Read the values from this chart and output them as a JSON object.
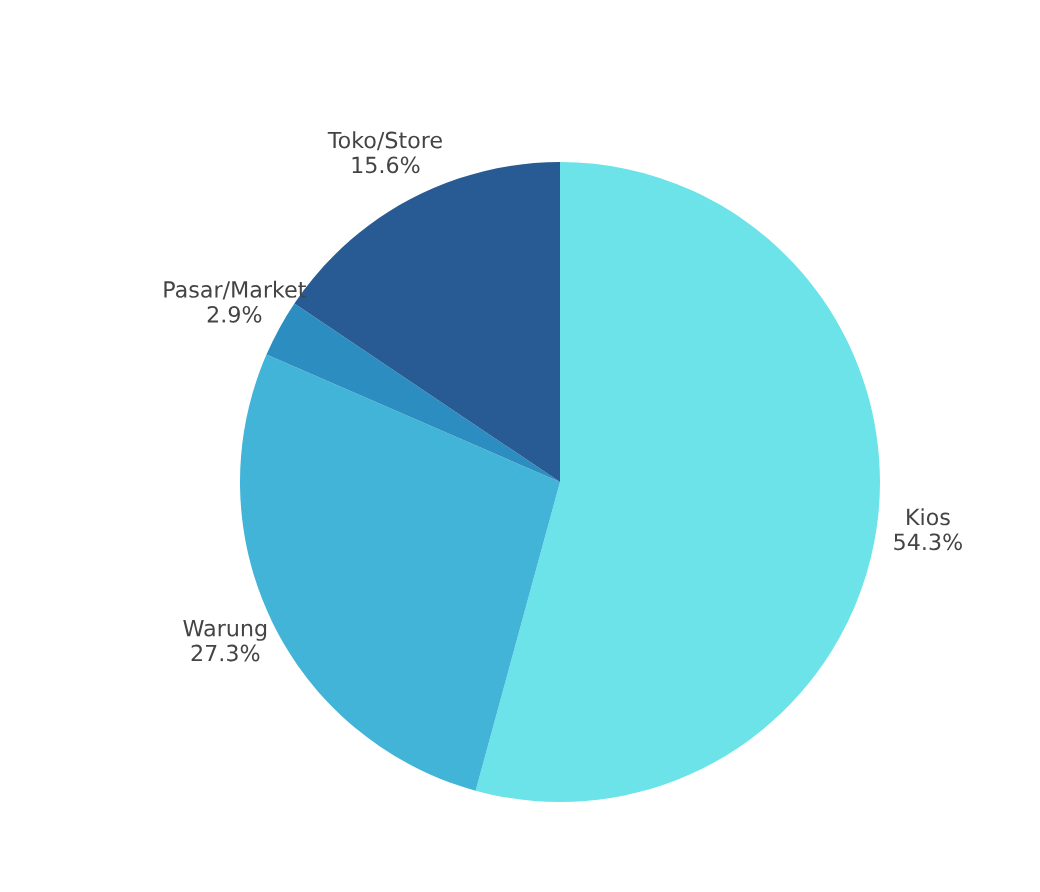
{
  "chart_data": {
    "type": "pie",
    "categories": [
      "Kios",
      "Warung",
      "Pasar/Market",
      "Toko/Store"
    ],
    "values": [
      54.3,
      27.3,
      2.9,
      15.6
    ],
    "colors": [
      "#6ce3e8",
      "#42b4d8",
      "#2b8dc0",
      "#285b94"
    ],
    "value_labels": [
      "54.3%",
      "27.3%",
      "2.9%",
      "15.6%"
    ]
  }
}
